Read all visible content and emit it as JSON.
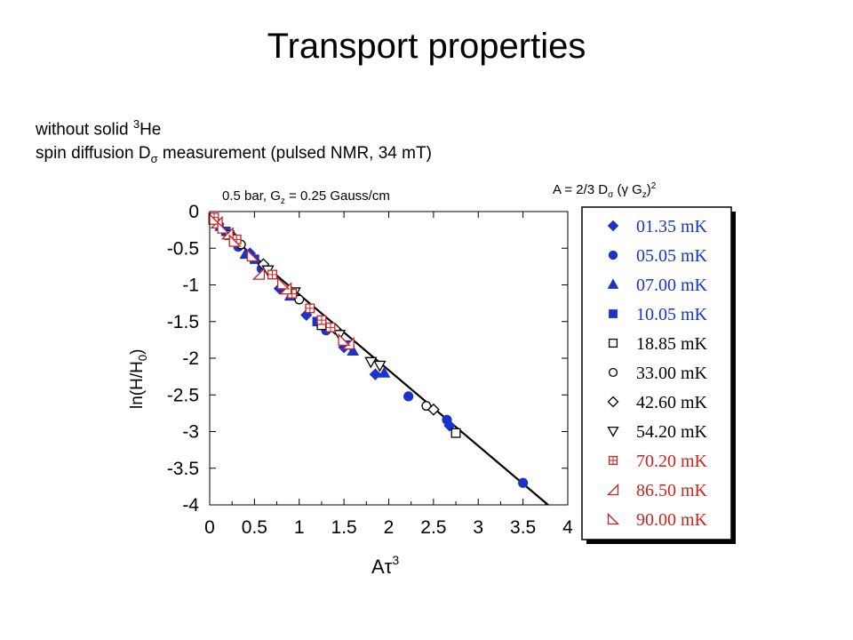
{
  "page": {
    "title": "Transport properties",
    "line1_prefix": "without solid ",
    "line1_sup": "3",
    "line1_suffix": "He",
    "line2_prefix": "spin diffusion D",
    "line2_sub": "σ",
    "line2_suffix": " measurement (pulsed NMR, 34 mT)",
    "cond_prefix": "0.5 bar, G",
    "cond_sub": "z",
    "cond_suffix": " = 0.25 Gauss/cm",
    "formula_a": "A = 2/3  D",
    "formula_sub1": "σ",
    "formula_b": " (γ G",
    "formula_sub2": "z",
    "formula_c": ")",
    "formula_sup": "2"
  },
  "chart_data": {
    "type": "scatter",
    "xlabel": "Aτ3",
    "xlabel_main": "Aτ",
    "xlabel_sup": "3",
    "ylabel": "ln(H/H0)",
    "ylabel_main": "ln(H/H",
    "ylabel_sub": "0",
    "ylabel_end": ")",
    "xlim": [
      0,
      4
    ],
    "ylim": [
      -4,
      0
    ],
    "x_ticks": [
      "0",
      "0.5",
      "1",
      "1.5",
      "2",
      "2.5",
      "3",
      "3.5",
      "4"
    ],
    "y_ticks": [
      "0",
      "-0.5",
      "-1",
      "-1.5",
      "-2",
      "-2.5",
      "-3",
      "-3.5",
      "-4"
    ],
    "fit_line": {
      "x": [
        0.0,
        3.78
      ],
      "y": [
        -0.1,
        -4.0
      ]
    },
    "legend_position": "right",
    "colors": {
      "blue": "#1a33cc",
      "red": "#cc2222",
      "black": "#000000"
    },
    "series": [
      {
        "name": "01.35 mK",
        "marker": "diamond-filled",
        "color": "#1a33cc",
        "points": [
          [
            0.1,
            -0.17
          ],
          [
            0.25,
            -0.33
          ],
          [
            0.45,
            -0.57
          ],
          [
            0.78,
            -1.05
          ],
          [
            1.08,
            -1.41
          ],
          [
            1.5,
            -1.85
          ],
          [
            1.85,
            -2.22
          ],
          [
            2.68,
            -2.92
          ]
        ]
      },
      {
        "name": "05.05 mK",
        "marker": "circle-filled",
        "color": "#1a33cc",
        "points": [
          [
            0.05,
            -0.1
          ],
          [
            0.32,
            -0.48
          ],
          [
            0.58,
            -0.78
          ],
          [
            1.3,
            -1.62
          ],
          [
            2.22,
            -2.52
          ],
          [
            2.65,
            -2.84
          ],
          [
            3.5,
            -3.7
          ]
        ]
      },
      {
        "name": "07.00 mK",
        "marker": "triangle-filled",
        "color": "#1a33cc",
        "points": [
          [
            0.12,
            -0.2
          ],
          [
            0.4,
            -0.58
          ],
          [
            0.9,
            -1.15
          ],
          [
            1.6,
            -1.9
          ],
          [
            1.95,
            -2.2
          ]
        ]
      },
      {
        "name": "10.05 mK",
        "marker": "square-filled",
        "color": "#1a33cc",
        "points": [
          [
            0.18,
            -0.27
          ],
          [
            0.5,
            -0.65
          ],
          [
            1.2,
            -1.5
          ],
          [
            1.55,
            -1.82
          ]
        ]
      },
      {
        "name": "18.85 mK",
        "marker": "square-open",
        "color": "#000000",
        "points": [
          [
            0.22,
            -0.32
          ],
          [
            1.25,
            -1.55
          ],
          [
            2.75,
            -3.02
          ]
        ]
      },
      {
        "name": "33.00 mK",
        "marker": "circle-open",
        "color": "#000000",
        "points": [
          [
            0.35,
            -0.45
          ],
          [
            1.0,
            -1.2
          ],
          [
            2.42,
            -2.65
          ]
        ]
      },
      {
        "name": "42.60 mK",
        "marker": "diamond-open",
        "color": "#000000",
        "points": [
          [
            0.6,
            -0.72
          ],
          [
            1.4,
            -1.6
          ],
          [
            2.5,
            -2.7
          ]
        ]
      },
      {
        "name": "54.20 mK",
        "marker": "triangle-down-open",
        "color": "#000000",
        "points": [
          [
            0.65,
            -0.8
          ],
          [
            0.95,
            -1.1
          ],
          [
            1.45,
            -1.68
          ],
          [
            1.8,
            -2.05
          ],
          [
            1.9,
            -2.1
          ]
        ]
      },
      {
        "name": "70.20 mK",
        "marker": "square-crossed",
        "color": "#cc2222",
        "points": [
          [
            0.05,
            -0.08
          ],
          [
            0.3,
            -0.38
          ],
          [
            0.7,
            -0.86
          ],
          [
            0.92,
            -1.12
          ],
          [
            1.12,
            -1.32
          ],
          [
            1.25,
            -1.48
          ],
          [
            1.35,
            -1.58
          ]
        ]
      },
      {
        "name": "86.50 mK",
        "marker": "triangle-left-open",
        "color": "#cc2222",
        "points": [
          [
            0.08,
            -0.15
          ],
          [
            0.2,
            -0.3
          ],
          [
            0.55,
            -0.85
          ],
          [
            0.85,
            -1.05
          ],
          [
            1.55,
            -1.8
          ]
        ]
      },
      {
        "name": "90.00 mK",
        "marker": "triangle-right-open",
        "color": "#cc2222",
        "points": [
          [
            0.05,
            -0.1
          ],
          [
            0.15,
            -0.22
          ],
          [
            0.28,
            -0.4
          ],
          [
            0.48,
            -0.6
          ],
          [
            0.82,
            -0.98
          ],
          [
            1.5,
            -1.75
          ]
        ]
      }
    ]
  }
}
